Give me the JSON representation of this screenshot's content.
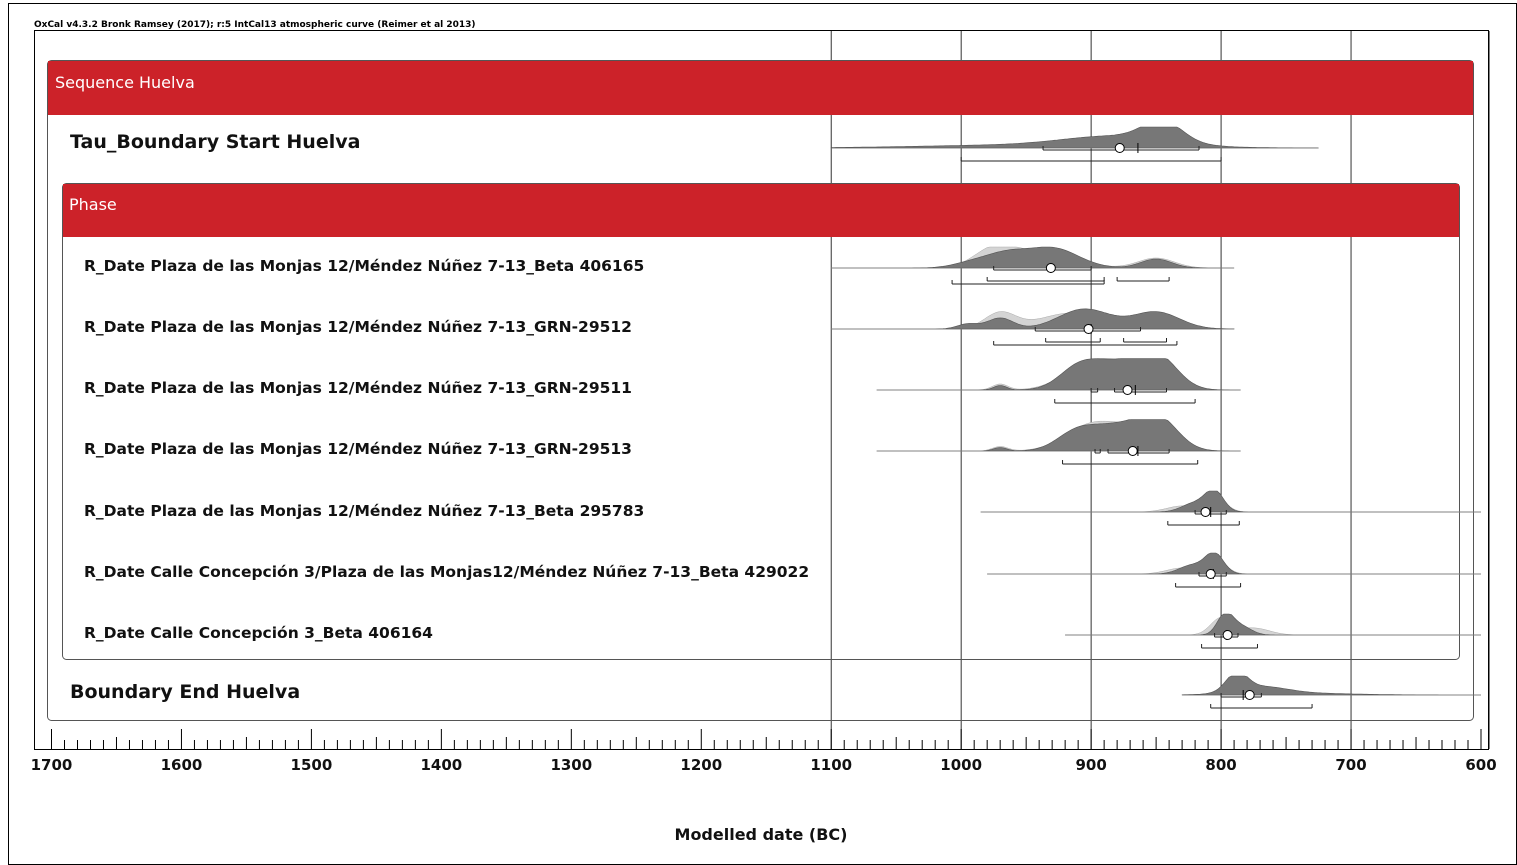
{
  "header": {
    "text": "OxCal v4.3.2 Bronk Ramsey (2017); r:5 IntCal13 atmospheric curve (Reimer et al 2013)"
  },
  "colors": {
    "accent": "#cc2229",
    "posterior": "#777777",
    "prior": "#d4d4d4",
    "grid": "#333333"
  },
  "chart_data": {
    "type": "area",
    "xlabel": "Modelled date (BC)",
    "xlim": [
      1700,
      600
    ],
    "x_reversed": true,
    "x_major_ticks": [
      1700,
      1600,
      1500,
      1400,
      1300,
      1200,
      1100,
      1000,
      900,
      800,
      700,
      600
    ],
    "x_minor_step": 10,
    "vertical_grid": [
      1100,
      1000,
      900,
      800,
      700
    ],
    "sequence": {
      "title": "Sequence Huelva"
    },
    "phase": {
      "title": "Phase"
    },
    "rows": [
      {
        "label": "Tau_Boundary Start Huelva",
        "level": "boundary",
        "peaks": [
          [
            845,
            15,
            1.0
          ],
          [
            880,
            40,
            0.5
          ],
          [
            950,
            80,
            0.15
          ]
        ],
        "prior_peaks": [],
        "range_x": [
          1100,
          725
        ],
        "mean": 878,
        "median": 864,
        "hpd68": [
          [
            937,
            817
          ]
        ],
        "hpd95": [
          [
            1000,
            800
          ]
        ]
      },
      {
        "label": "R_Date Plaza de las Monjas 12/Méndez Núñez 7-13_Beta 406165",
        "level": "date",
        "peaks": [
          [
            930,
            20,
            1.0
          ],
          [
            965,
            15,
            0.6
          ],
          [
            850,
            12,
            0.45
          ],
          [
            990,
            15,
            0.3
          ]
        ],
        "prior_peaks": [
          [
            975,
            15,
            0.85
          ],
          [
            940,
            25,
            0.8
          ],
          [
            850,
            14,
            0.5
          ]
        ],
        "range_x": [
          1100,
          790
        ],
        "mean": 931,
        "median": 931,
        "hpd68": [
          [
            975,
            900
          ]
        ],
        "hpd95": [
          [
            980,
            890
          ],
          [
            880,
            840
          ]
        ],
        "hpd95b": [
          [
            1007,
            890
          ]
        ]
      },
      {
        "label": "R_Date Plaza de las Monjas 12/Méndez Núñez 7-13_GRN-29512",
        "level": "date",
        "peaks": [
          [
            905,
            20,
            1.0
          ],
          [
            850,
            18,
            0.85
          ],
          [
            970,
            10,
            0.55
          ],
          [
            995,
            8,
            0.25
          ]
        ],
        "prior_peaks": [
          [
            970,
            12,
            0.8
          ],
          [
            915,
            25,
            0.8
          ],
          [
            850,
            18,
            0.7
          ]
        ],
        "range_x": [
          1100,
          790
        ],
        "mean": 902,
        "median": 900,
        "hpd68": [
          [
            943,
            862
          ]
        ],
        "hpd95": [
          [
            935,
            893
          ],
          [
            875,
            842
          ]
        ],
        "hpd95b": [
          [
            975,
            834
          ]
        ]
      },
      {
        "label": "R_Date Plaza de las Monjas 12/Méndez Núñez 7-13_GRN-29511",
        "level": "date",
        "peaks": [
          [
            848,
            15,
            1.0
          ],
          [
            880,
            20,
            0.85
          ],
          [
            910,
            15,
            0.65
          ],
          [
            970,
            5,
            0.15
          ]
        ],
        "prior_peaks": [
          [
            900,
            20,
            0.9
          ],
          [
            860,
            20,
            0.8
          ],
          [
            970,
            6,
            0.2
          ]
        ],
        "range_x": [
          1065,
          785
        ],
        "mean": 872,
        "median": 866,
        "hpd68": [
          [
            900,
            895
          ],
          [
            882,
            842
          ]
        ],
        "hpd95": [
          [
            928,
            820
          ]
        ],
        "hpd95b": []
      },
      {
        "label": "R_Date Plaza de las Monjas 12/Méndez Núñez 7-13_GRN-29513",
        "level": "date",
        "peaks": [
          [
            848,
            15,
            1.0
          ],
          [
            880,
            20,
            0.8
          ],
          [
            912,
            15,
            0.55
          ],
          [
            970,
            5,
            0.12
          ]
        ],
        "prior_peaks": [
          [
            900,
            20,
            0.85
          ],
          [
            860,
            20,
            0.75
          ],
          [
            970,
            6,
            0.15
          ]
        ],
        "range_x": [
          1065,
          785
        ],
        "mean": 868,
        "median": 864,
        "hpd68": [
          [
            897,
            893
          ],
          [
            887,
            840
          ]
        ],
        "hpd95": [
          [
            922,
            818
          ]
        ],
        "hpd95b": []
      },
      {
        "label": "R_Date Plaza de las Monjas 12/Méndez Núñez 7-13_Beta 295783",
        "level": "date",
        "peaks": [
          [
            805,
            7,
            1.0
          ],
          [
            820,
            10,
            0.45
          ]
        ],
        "prior_peaks": [
          [
            805,
            8,
            0.8
          ],
          [
            830,
            12,
            0.3
          ]
        ],
        "range_x": [
          985,
          600
        ],
        "mean": 812,
        "median": 808,
        "hpd68": [
          [
            820,
            796
          ]
        ],
        "hpd95": [
          [
            841,
            786
          ]
        ],
        "hpd95b": []
      },
      {
        "label": "R_Date Calle Concepción 3/Plaza de las Monjas12/Méndez Núñez 7-13_Beta 429022",
        "level": "date",
        "peaks": [
          [
            805,
            7,
            1.0
          ],
          [
            822,
            10,
            0.45
          ]
        ],
        "prior_peaks": [
          [
            805,
            8,
            0.8
          ],
          [
            830,
            12,
            0.3
          ]
        ],
        "range_x": [
          980,
          600
        ],
        "mean": 808,
        "median": 806,
        "hpd68": [
          [
            817,
            796
          ]
        ],
        "hpd95": [
          [
            835,
            785
          ]
        ],
        "hpd95b": []
      },
      {
        "label": "R_Date Calle Concepción 3_Beta 406164",
        "level": "date",
        "peaks": [
          [
            797,
            6,
            1.0
          ],
          [
            785,
            8,
            0.45
          ]
        ],
        "prior_peaks": [
          [
            800,
            8,
            0.85
          ],
          [
            775,
            12,
            0.35
          ]
        ],
        "range_x": [
          920,
          600
        ],
        "mean": 795,
        "median": 796,
        "hpd68": [
          [
            805,
            787
          ]
        ],
        "hpd95": [
          [
            815,
            772
          ]
        ],
        "hpd95b": []
      },
      {
        "label": "Boundary End Huelva",
        "level": "boundary",
        "peaks": [
          [
            788,
            8,
            1.0
          ],
          [
            770,
            20,
            0.4
          ],
          [
            740,
            40,
            0.1
          ]
        ],
        "prior_peaks": [],
        "range_x": [
          830,
          600
        ],
        "mean": 778,
        "median": 783,
        "hpd68": [
          [
            800,
            769
          ]
        ],
        "hpd95": [
          [
            808,
            730
          ]
        ],
        "hpd95b": []
      }
    ]
  }
}
